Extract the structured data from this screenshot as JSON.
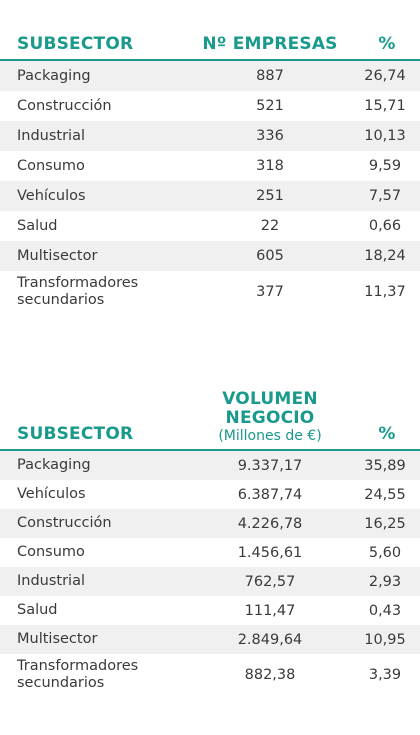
{
  "table1": {
    "headers": {
      "subsector": "SUBSECTOR",
      "value": "Nº EMPRESAS",
      "pct": "%"
    },
    "rows": [
      {
        "name": "Packaging",
        "value": "887",
        "pct": "26,74"
      },
      {
        "name": "Construcción",
        "value": "521",
        "pct": "15,71"
      },
      {
        "name": "Industrial",
        "value": "336",
        "pct": "10,13"
      },
      {
        "name": "Consumo",
        "value": "318",
        "pct": "9,59"
      },
      {
        "name": "Vehículos",
        "value": "251",
        "pct": "7,57"
      },
      {
        "name": "Salud",
        "value": "22",
        "pct": "0,66"
      },
      {
        "name": "Multisector",
        "value": "605",
        "pct": "18,24"
      },
      {
        "name": "Transformadores secundarios",
        "value": "377",
        "pct": "11,37"
      }
    ]
  },
  "table2": {
    "headers": {
      "subsector": "SUBSECTOR",
      "value_line1": "VOLUMEN",
      "value_line2": "NEGOCIO",
      "value_sub": "(Millones de €)",
      "pct": "%"
    },
    "rows": [
      {
        "name": "Packaging",
        "value": "9.337,17",
        "pct": "35,89"
      },
      {
        "name": "Vehículos",
        "value": "6.387,74",
        "pct": "24,55"
      },
      {
        "name": "Construcción",
        "value": "4.226,78",
        "pct": "16,25"
      },
      {
        "name": "Consumo",
        "value": "1.456,61",
        "pct": "5,60"
      },
      {
        "name": "Industrial",
        "value": "762,57",
        "pct": "2,93"
      },
      {
        "name": "Salud",
        "value": "111,47",
        "pct": "0,43"
      },
      {
        "name": "Multisector",
        "value": "2.849,64",
        "pct": "10,95"
      },
      {
        "name": "Transformadores secundarios",
        "value": "882,38",
        "pct": "3,39"
      }
    ]
  },
  "colors": {
    "accent": "#1a9a8c",
    "stripe": "#f0f0f0",
    "text": "#3a3a3a"
  }
}
